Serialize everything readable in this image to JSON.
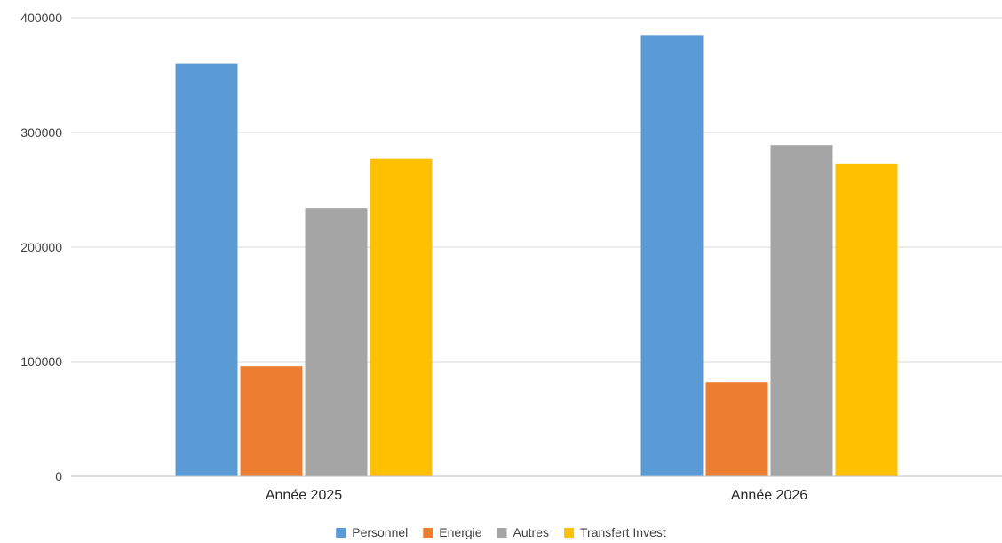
{
  "chart_data": {
    "type": "bar",
    "title": "",
    "xlabel": "",
    "ylabel": "",
    "categories": [
      "Année 2025",
      "Année 2026"
    ],
    "series": [
      {
        "name": "Personnel",
        "color": "#5B9BD5",
        "values": [
          360000,
          385000
        ]
      },
      {
        "name": "Energie",
        "color": "#ED7D31",
        "values": [
          96000,
          82000
        ]
      },
      {
        "name": "Autres",
        "color": "#A5A5A5",
        "values": [
          234000,
          289000
        ]
      },
      {
        "name": "Transfert Invest",
        "color": "#FFC000",
        "values": [
          277000,
          273000
        ]
      }
    ],
    "ylim": [
      0,
      400000
    ],
    "yticks": [
      "0",
      "100000",
      "200000",
      "300000",
      "400000"
    ],
    "ytick_values": [
      0,
      100000,
      200000,
      300000,
      400000
    ],
    "grid": true,
    "legend_position": "bottom"
  }
}
